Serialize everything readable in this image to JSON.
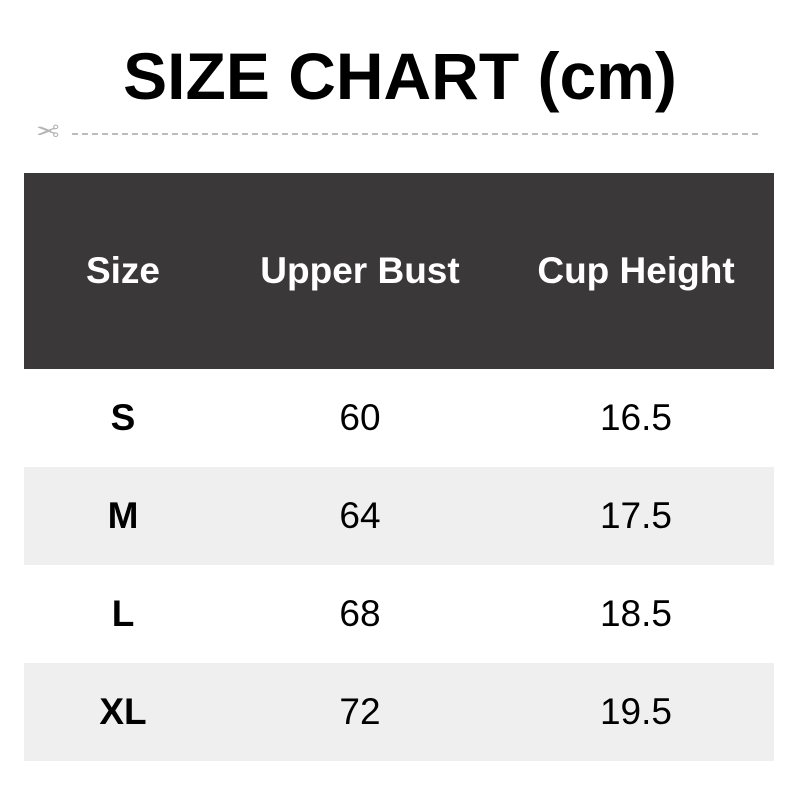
{
  "chart_data": {
    "type": "table",
    "title": "SIZE CHART (cm)",
    "columns": [
      "Size",
      "Upper Bust",
      "Cup Height"
    ],
    "rows": [
      [
        "S",
        "60",
        "16.5"
      ],
      [
        "M",
        "64",
        "17.5"
      ],
      [
        "L",
        "68",
        "18.5"
      ],
      [
        "XL",
        "72",
        "19.5"
      ]
    ],
    "colors": {
      "header_bg": "#3a3838",
      "header_text": "#ffffff",
      "alt_row_bg": "#efefef"
    }
  },
  "decor": {
    "cut_line_icon": "scissors-icon"
  }
}
